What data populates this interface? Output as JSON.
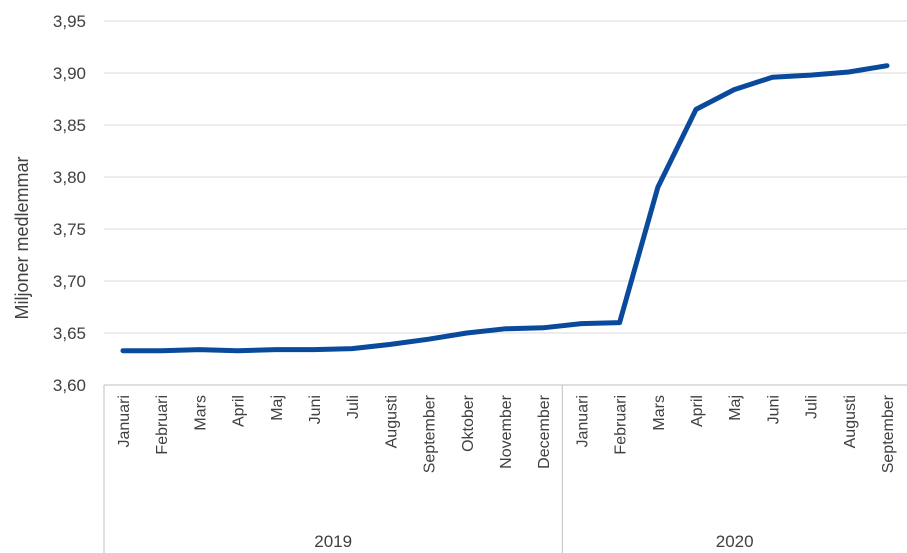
{
  "chart_data": {
    "type": "line",
    "ylabel": "Miljoner medlemmar",
    "ylim": [
      3.6,
      3.95
    ],
    "yticks": [
      "3,60",
      "3,65",
      "3,70",
      "3,75",
      "3,80",
      "3,85",
      "3,90",
      "3,95"
    ],
    "grid": true,
    "legend": "none",
    "color": "#0a4a9c",
    "groups": [
      {
        "label": "2019",
        "months": [
          "Januari",
          "Februari",
          "Mars",
          "April",
          "Maj",
          "Juni",
          "Juli",
          "Augusti",
          "September",
          "Oktober",
          "November",
          "December"
        ]
      },
      {
        "label": "2020",
        "months": [
          "Januari",
          "Februari",
          "Mars",
          "April",
          "Maj",
          "Juni",
          "Juli",
          "Augusti",
          "September"
        ]
      }
    ],
    "series": [
      {
        "values": [
          3.633,
          3.633,
          3.634,
          3.633,
          3.634,
          3.634,
          3.635,
          3.639,
          3.644,
          3.65,
          3.654,
          3.655,
          3.659,
          3.66,
          3.79,
          3.865,
          3.884,
          3.896,
          3.898,
          3.901,
          3.907
        ]
      }
    ]
  }
}
